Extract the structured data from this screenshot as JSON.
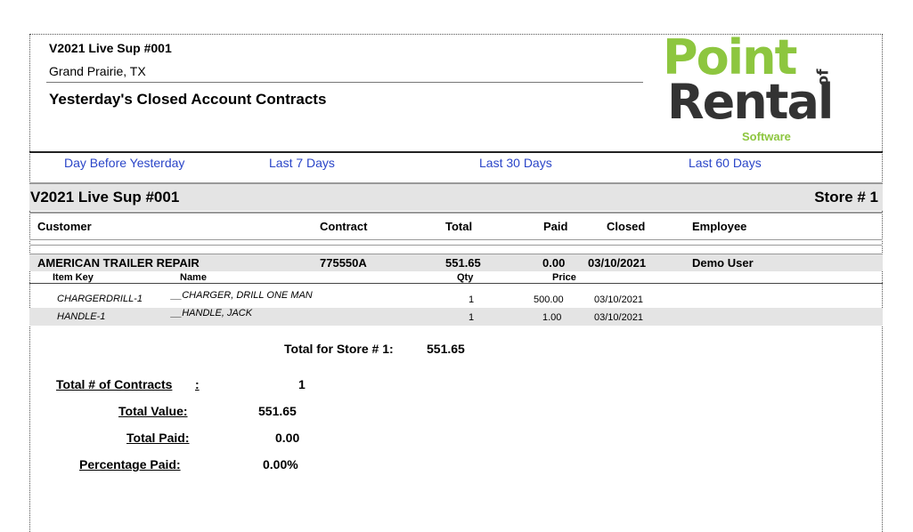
{
  "header": {
    "company": "V2021 Live Sup #001",
    "city": "Grand Prairie, TX",
    "title": "Yesterday's Closed Account Contracts"
  },
  "logo": {
    "point": "Point",
    "of": "of",
    "rental": "Rental",
    "software": "Software"
  },
  "nav": {
    "day_before": "Day Before Yesterday",
    "last7": "Last 7 Days",
    "last30": "Last 30 Days",
    "last60": "Last 60 Days"
  },
  "store": {
    "name": "V2021 Live Sup #001",
    "number": "Store # 1"
  },
  "columns": {
    "customer": "Customer",
    "contract": "Contract",
    "total": "Total",
    "paid": "Paid",
    "closed": "Closed",
    "employee": "Employee"
  },
  "row": {
    "customer": "AMERICAN TRAILER REPAIR",
    "contract": "775550A",
    "total": "551.65",
    "paid": "0.00",
    "closed": "03/10/2021",
    "employee": "Demo User"
  },
  "item_columns": {
    "key": "Item Key",
    "name": "Name",
    "qty": "Qty",
    "price": "Price"
  },
  "items": [
    {
      "key": "CHARGERDRILL-1",
      "name": "__CHARGER, DRILL ONE MAN",
      "qty": "1",
      "price": "500.00",
      "date": "03/10/2021"
    },
    {
      "key": "HANDLE-1",
      "name": "__HANDLE, JACK",
      "qty": "1",
      "price": "1.00",
      "date": "03/10/2021"
    }
  ],
  "store_total": {
    "label": "Total for Store # 1:",
    "value": "551.65"
  },
  "summary": {
    "contracts_label": "Total # of Contracts",
    "contracts_colon": ":",
    "contracts_value": "1",
    "value_label": "Total Value:",
    "value_value": "551.65",
    "paid_label": "Total Paid:",
    "paid_value": "0.00",
    "pct_label": "Percentage Paid:",
    "pct_value": "0.00%"
  },
  "colors": {
    "link": "#2a45c8",
    "brand_green": "#8dc63f",
    "band": "#e4e4e4"
  }
}
